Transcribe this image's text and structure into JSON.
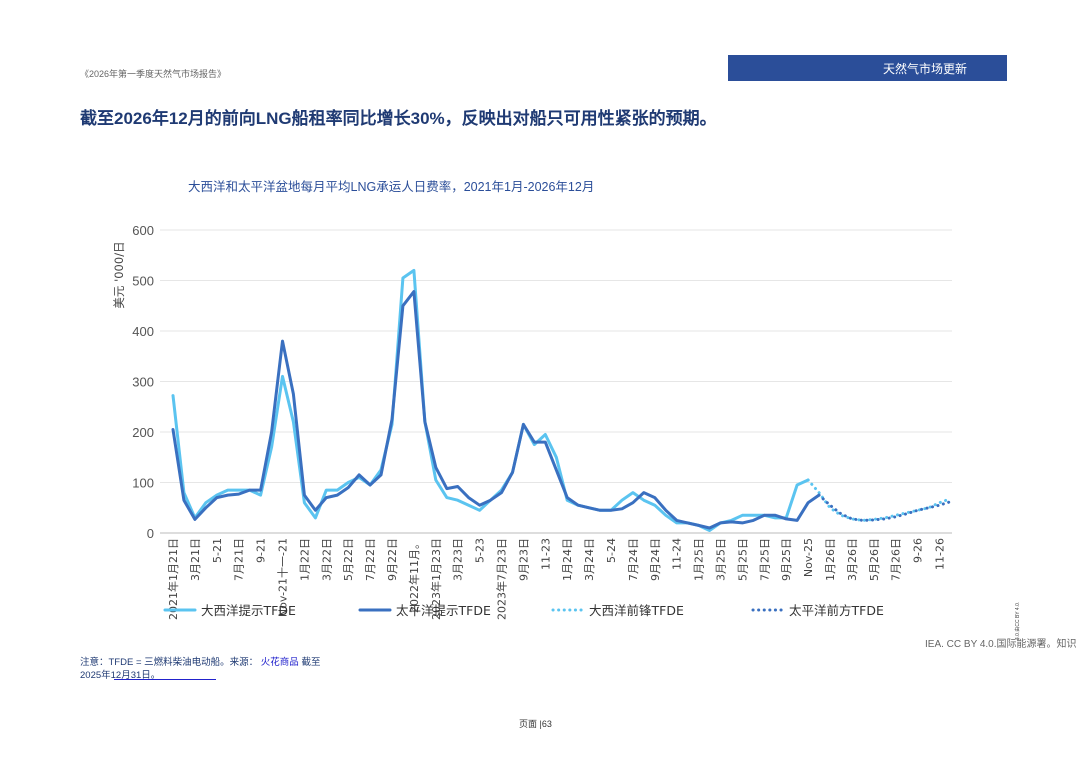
{
  "header": {
    "report_title": "《2026年第一季度天然气市场报告》",
    "section": "天然气市场更新",
    "headline": "截至2026年12月的前向LNG船租率同比增长30%，反映出对船只可用性紧张的预期。"
  },
  "chart_data": {
    "type": "line",
    "title": "大西洋和太平洋盆地每月平均LNG承运人日费率，2021年1月-2026年12月",
    "ylabel": "美元 '000/日",
    "ylim": [
      0,
      600
    ],
    "yticks": [
      0,
      100,
      200,
      300,
      400,
      500,
      600
    ],
    "grid": true,
    "legend_position": "bottom",
    "x_tick_labels": [
      "2021年1月21日",
      "3月21日",
      "5-21",
      "7月21日",
      "9-21",
      "Nov-21十一-21",
      "1月22日",
      "3月22日",
      "5月22日",
      "7月22日",
      "9月22日",
      "2022年11月。",
      "2023年1月23日",
      "3月23日",
      "5-23",
      "2023年7月23日",
      "9月23日",
      "11-23",
      "1月24日",
      "3月24日",
      "5-24",
      "7月24日",
      "9月24日",
      "11-24",
      "1月25日",
      "3月25日",
      "5月25日",
      "7月25日",
      "9月25日",
      "Nov-25",
      "1月26日",
      "3月26日",
      "5月26日",
      "7月26日",
      "9-26",
      "11-26"
    ],
    "months": 72,
    "series": [
      {
        "name": "大西洋提示TFDE",
        "color": "#5bc4f0",
        "style": "solid",
        "start_month": 0,
        "values": [
          272,
          80,
          30,
          60,
          75,
          85,
          85,
          85,
          75,
          170,
          310,
          220,
          60,
          30,
          85,
          85,
          100,
          110,
          95,
          125,
          215,
          505,
          520,
          220,
          105,
          70,
          65,
          55,
          45,
          65,
          85,
          120,
          215,
          175,
          195,
          150,
          65,
          55,
          50,
          45,
          45,
          65,
          80,
          65,
          55,
          35,
          20,
          20,
          15,
          5,
          20,
          25,
          35,
          35,
          35,
          30,
          30,
          95,
          105
        ]
      },
      {
        "name": "太平洋提示TFDE",
        "color": "#3a70c0",
        "style": "solid",
        "start_month": 0,
        "values": [
          205,
          65,
          27,
          50,
          70,
          75,
          77,
          85,
          85,
          200,
          380,
          275,
          75,
          45,
          70,
          75,
          90,
          115,
          95,
          115,
          225,
          450,
          478,
          220,
          130,
          88,
          92,
          70,
          55,
          65,
          80,
          120,
          215,
          180,
          180,
          125,
          70,
          55,
          50,
          45,
          45,
          48,
          60,
          80,
          70,
          45,
          25,
          20,
          15,
          10,
          20,
          22,
          20,
          25,
          35,
          35,
          28,
          25,
          60,
          75
        ]
      },
      {
        "name": "大西洋前锋TFDE",
        "color": "#5bc4f0",
        "style": "dotted",
        "start_month": 58,
        "values": [
          105,
          80,
          50,
          35,
          28,
          25,
          27,
          30,
          35,
          40,
          45,
          50,
          60,
          68
        ]
      },
      {
        "name": "太平洋前方TFDE",
        "color": "#3a70c0",
        "style": "dotted",
        "start_month": 59,
        "values": [
          75,
          55,
          38,
          28,
          25,
          26,
          28,
          32,
          38,
          45,
          50,
          55,
          62
        ]
      }
    ]
  },
  "footer": {
    "license": "IEA. CC BY 4.0.国际能源署。知识",
    "side_note": "4.0.由CC BY 4.0.",
    "note_prefix": "注意：TFDE = 三燃料柴油电动船。来源：",
    "source_link": "火花商品",
    "note_suffix": "截至",
    "note_date": "2025年12月31日。",
    "page": "页面 |63"
  }
}
